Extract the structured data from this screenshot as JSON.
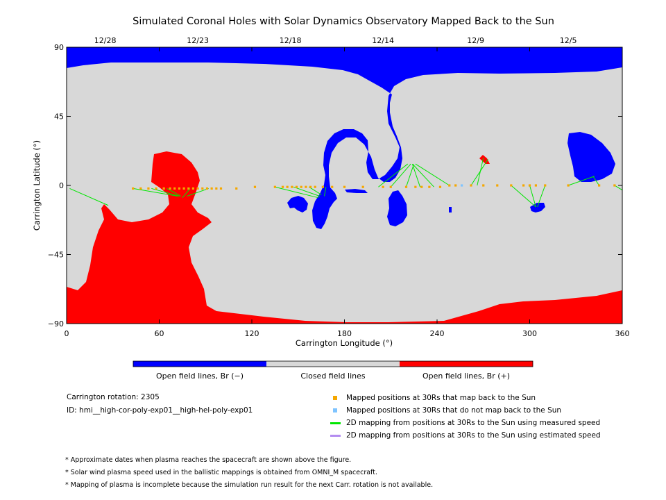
{
  "chart_data": {
    "type": "map",
    "title": "Simulated Coronal Holes with Solar Dynamics Observatory Mapped Back to the Sun",
    "xlabel": "Carrington Longitude (°)",
    "ylabel": "Carrington Latitude (°)",
    "xlim": [
      0,
      360
    ],
    "ylim": [
      -90,
      90
    ],
    "x_ticks": [
      "0",
      "60",
      "120",
      "180",
      "240",
      "300",
      "360"
    ],
    "y_ticks": [
      "90",
      "45",
      "0",
      "−45",
      "−90"
    ],
    "top_axis_dates": [
      {
        "label": "12/28",
        "lon": 25
      },
      {
        "label": "12/23",
        "lon": 85
      },
      {
        "label": "12/18",
        "lon": 145
      },
      {
        "label": "12/14",
        "lon": 205
      },
      {
        "label": "12/9",
        "lon": 265
      },
      {
        "label": "12/5",
        "lon": 325
      }
    ],
    "colorbar": [
      {
        "label": "Open field lines, Br (−)",
        "color": "#0000ff"
      },
      {
        "label": "Closed field lines",
        "color": "#d8d8d8"
      },
      {
        "label": "Open field lines, Br (+)",
        "color": "#ff0000"
      }
    ],
    "mapped_positions_30Rs": [
      [
        43,
        -2
      ],
      [
        48,
        -2
      ],
      [
        53,
        -2
      ],
      [
        58,
        -2
      ],
      [
        63,
        -2
      ],
      [
        67,
        -2
      ],
      [
        70,
        -2
      ],
      [
        73,
        -2
      ],
      [
        76,
        -2
      ],
      [
        79,
        -2
      ],
      [
        82,
        -2
      ],
      [
        85,
        -2
      ],
      [
        88,
        -2
      ],
      [
        91,
        -2
      ],
      [
        94,
        -2
      ],
      [
        97,
        -2
      ],
      [
        100,
        -2
      ],
      [
        110,
        -2
      ],
      [
        122,
        -1
      ],
      [
        135,
        -1
      ],
      [
        140,
        -1
      ],
      [
        143,
        -1
      ],
      [
        146,
        -1
      ],
      [
        149,
        -1
      ],
      [
        152,
        -1
      ],
      [
        155,
        -1
      ],
      [
        158,
        -1
      ],
      [
        161,
        -1
      ],
      [
        166,
        -1
      ],
      [
        172,
        -1
      ],
      [
        180,
        -1
      ],
      [
        192,
        -1
      ],
      [
        205,
        -1
      ],
      [
        210,
        -1
      ],
      [
        220,
        -1
      ],
      [
        226,
        -1
      ],
      [
        230,
        -1
      ],
      [
        235,
        -1
      ],
      [
        242,
        -1
      ],
      [
        248,
        0
      ],
      [
        252,
        0
      ],
      [
        262,
        0
      ],
      [
        270,
        0
      ],
      [
        279,
        0
      ],
      [
        288,
        0
      ],
      [
        296,
        0
      ],
      [
        300,
        0
      ],
      [
        304,
        0
      ],
      [
        310,
        0
      ],
      [
        325,
        0
      ],
      [
        345,
        0
      ],
      [
        355,
        0
      ]
    ],
    "unmapped_positions_30Rs": [
      [
        256,
        0
      ]
    ],
    "measured_speed_mappings": [
      [
        [
          2,
          -2
        ],
        [
          27,
          -13
        ]
      ],
      [
        [
          43,
          -2
        ],
        [
          72,
          -7
        ]
      ],
      [
        [
          55,
          -2
        ],
        [
          73,
          -7
        ]
      ],
      [
        [
          65,
          -2
        ],
        [
          74,
          -7
        ]
      ],
      [
        [
          80,
          -2
        ],
        [
          75,
          -8
        ]
      ],
      [
        [
          92,
          -2
        ],
        [
          78,
          -7
        ]
      ],
      [
        [
          135,
          -1
        ],
        [
          163,
          -8
        ]
      ],
      [
        [
          147,
          -1
        ],
        [
          164,
          -7
        ]
      ],
      [
        [
          157,
          -1
        ],
        [
          165,
          -6
        ]
      ],
      [
        [
          168,
          -1
        ],
        [
          167,
          -7
        ]
      ],
      [
        [
          202,
          -1
        ],
        [
          221,
          14
        ]
      ],
      [
        [
          210,
          -1
        ],
        [
          223,
          14
        ]
      ],
      [
        [
          220,
          -1
        ],
        [
          225,
          14
        ]
      ],
      [
        [
          229,
          -1
        ],
        [
          224,
          14
        ]
      ],
      [
        [
          238,
          -1
        ],
        [
          225,
          13
        ]
      ],
      [
        [
          248,
          0
        ],
        [
          226,
          14
        ]
      ],
      [
        [
          262,
          0
        ],
        [
          273,
          17
        ]
      ],
      [
        [
          266,
          0
        ],
        [
          270,
          18
        ]
      ],
      [
        [
          288,
          0
        ],
        [
          304,
          -14
        ]
      ],
      [
        [
          300,
          0
        ],
        [
          304,
          -14
        ]
      ],
      [
        [
          310,
          0
        ],
        [
          305,
          -14
        ]
      ],
      [
        [
          325,
          0
        ],
        [
          342,
          6
        ]
      ],
      [
        [
          345,
          0
        ],
        [
          341,
          6
        ]
      ],
      [
        [
          355,
          0
        ],
        [
          360,
          -3
        ]
      ]
    ],
    "estimated_speed_mappings": []
  },
  "info": {
    "rotation": "Carrington rotation: 2305",
    "id": "ID: hmi__high-cor-poly-exp01__high-hel-poly-exp01"
  },
  "legend": [
    {
      "label": "Mapped positions at 30Rs that map back to the Sun",
      "color": "#f5a700",
      "kind": "square"
    },
    {
      "label": "Mapped positions at 30Rs that do not map back to the Sun",
      "color": "#7fc4ff",
      "kind": "square"
    },
    {
      "label": "2D mapping from positions at 30Rs to the Sun using measured speed",
      "color": "#00e600",
      "kind": "line"
    },
    {
      "label": "2D mapping from positions at 30Rs to the Sun using estimated speed",
      "color": "#b38cf0",
      "kind": "line"
    }
  ],
  "notes": [
    "* Approximate dates when plasma reaches the spacecraft are shown above the figure.",
    "* Solar wind plasma speed used in the ballistic mappings is obtained from OMNI_M spacecraft.",
    "* Mapping of plasma is incomplete because the simulation run result for the next Carr. rotation is not available."
  ]
}
